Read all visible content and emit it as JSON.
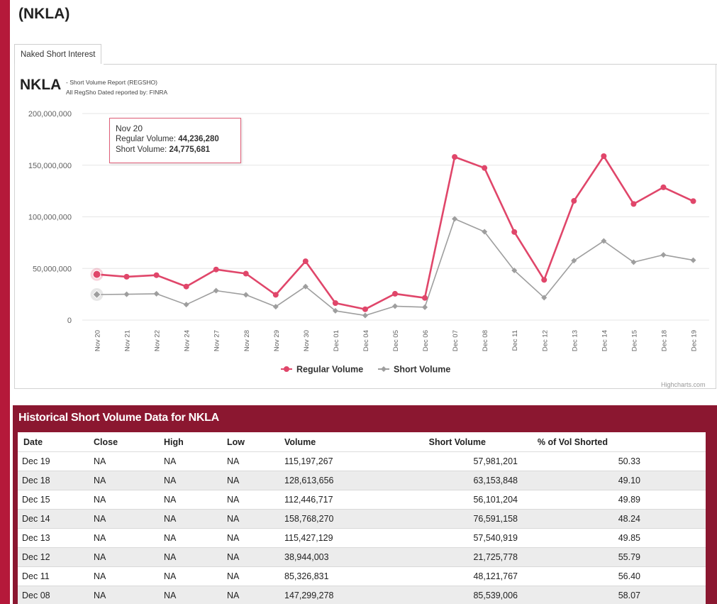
{
  "page": {
    "title": "(NKLA)",
    "tab_label": "Naked Short Interest"
  },
  "chart_header": {
    "symbol": "NKLA",
    "subtitle1": "- Short Volume Report  (REGSHO)",
    "subtitle2": "All RegSho Dated reported by: FINRA",
    "credit": "Highcharts.com"
  },
  "tooltip": {
    "date": "Nov 20",
    "regular_label": "Regular Volume: ",
    "regular_value": "44,236,280",
    "short_label": "Short Volume: ",
    "short_value": "24,775,681"
  },
  "chart_data": {
    "type": "line",
    "title": "",
    "xlabel": "",
    "ylabel": "",
    "ylim": [
      0,
      200000000
    ],
    "yticks": [
      0,
      50000000,
      100000000,
      150000000,
      200000000
    ],
    "ytick_labels": [
      "0",
      "50,000,000",
      "100,000,000",
      "150,000,000",
      "200,000,000"
    ],
    "grid": true,
    "legend_position": "bottom-center",
    "categories": [
      "Nov 20",
      "Nov 21",
      "Nov 22",
      "Nov 24",
      "Nov 27",
      "Nov 28",
      "Nov 29",
      "Nov 30",
      "Dec 01",
      "Dec 04",
      "Dec 05",
      "Dec 06",
      "Dec 07",
      "Dec 08",
      "Dec 11",
      "Dec 12",
      "Dec 13",
      "Dec 14",
      "Dec 15",
      "Dec 18",
      "Dec 19"
    ],
    "series": [
      {
        "name": "Regular Volume",
        "color": "#e0466a",
        "marker": "circle",
        "values": [
          44236280,
          42000000,
          43500000,
          32500000,
          49000000,
          45000000,
          24500000,
          57000000,
          16500000,
          10500000,
          25500000,
          21500000,
          158000000,
          147299278,
          85326831,
          38944003,
          115427129,
          158768270,
          112446717,
          128613656,
          115197267
        ]
      },
      {
        "name": "Short Volume",
        "color": "#9e9e9e",
        "marker": "diamond",
        "values": [
          24775681,
          25000000,
          25500000,
          15000000,
          28500000,
          24500000,
          13000000,
          32500000,
          9000000,
          4500000,
          13500000,
          12500000,
          98000000,
          85539006,
          48121767,
          21725778,
          57540919,
          76591158,
          56101204,
          63153848,
          57981201
        ]
      }
    ]
  },
  "table": {
    "title": "Historical Short Volume Data for NKLA",
    "headers": [
      "Date",
      "Close",
      "High",
      "Low",
      "Volume",
      "Short Volume",
      "% of Vol Shorted"
    ],
    "rows": [
      [
        "Dec 19",
        "NA",
        "NA",
        "NA",
        "115,197,267",
        "57,981,201",
        "50.33"
      ],
      [
        "Dec 18",
        "NA",
        "NA",
        "NA",
        "128,613,656",
        "63,153,848",
        "49.10"
      ],
      [
        "Dec 15",
        "NA",
        "NA",
        "NA",
        "112,446,717",
        "56,101,204",
        "49.89"
      ],
      [
        "Dec 14",
        "NA",
        "NA",
        "NA",
        "158,768,270",
        "76,591,158",
        "48.24"
      ],
      [
        "Dec 13",
        "NA",
        "NA",
        "NA",
        "115,427,129",
        "57,540,919",
        "49.85"
      ],
      [
        "Dec 12",
        "NA",
        "NA",
        "NA",
        "38,944,003",
        "21,725,778",
        "55.79"
      ],
      [
        "Dec 11",
        "NA",
        "NA",
        "NA",
        "85,326,831",
        "48,121,767",
        "56.40"
      ],
      [
        "Dec 08",
        "NA",
        "NA",
        "NA",
        "147,299,278",
        "85,539,006",
        "58.07"
      ]
    ]
  },
  "colors": {
    "accent": "#b5193a",
    "section_header": "#8b1730",
    "regular_series": "#e0466a",
    "short_series": "#9e9e9e"
  }
}
